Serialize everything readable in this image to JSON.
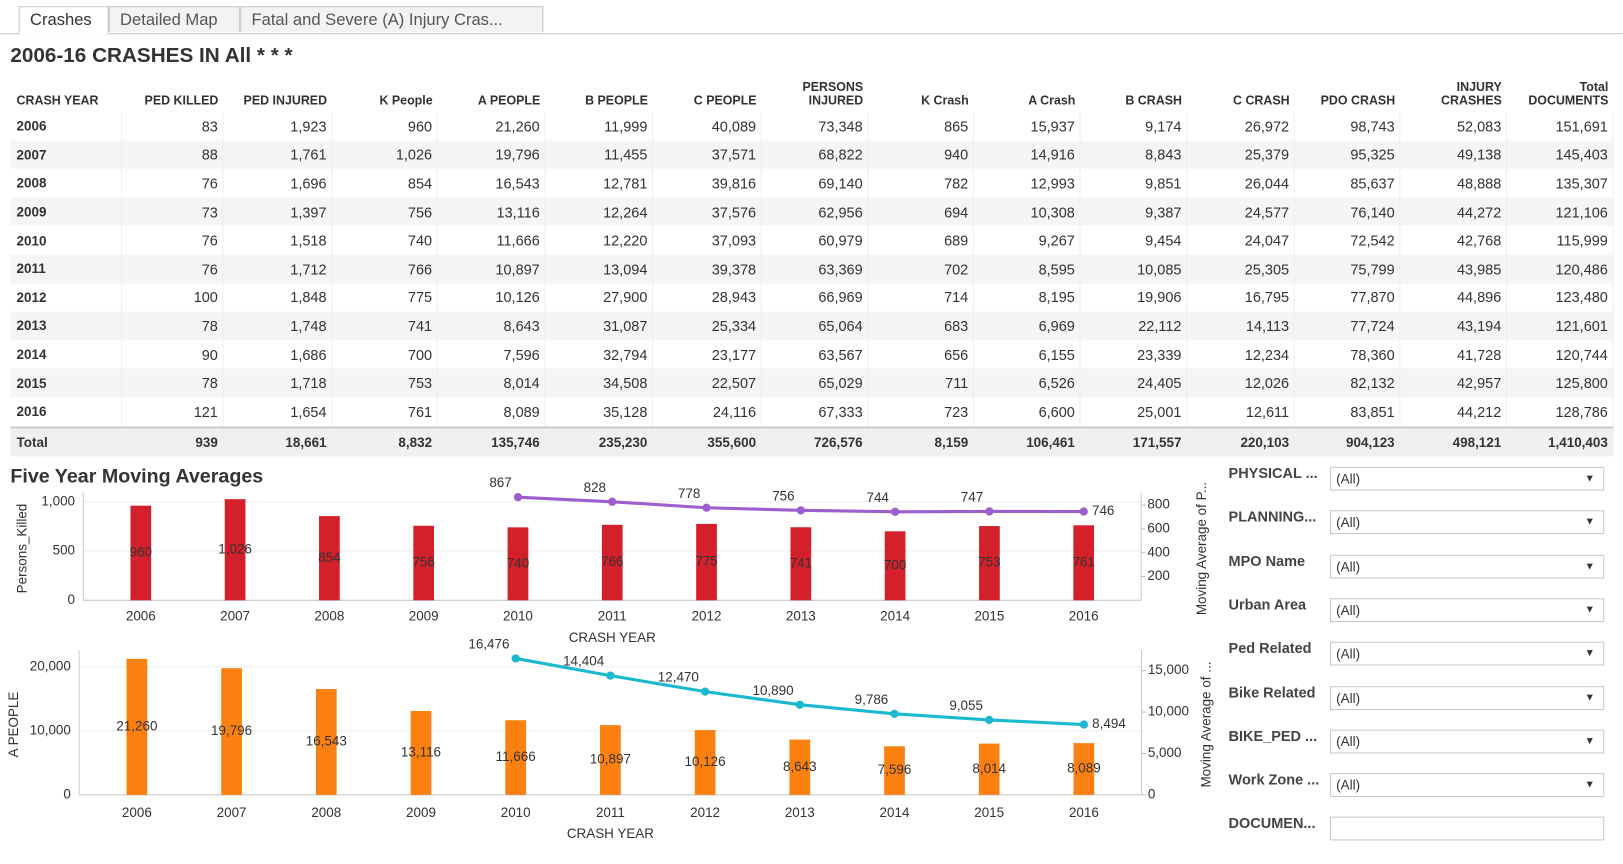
{
  "tabs": [
    "Crashes",
    "Detailed Map",
    "Fatal and Severe (A) Injury Cras..."
  ],
  "header": {
    "title": "2006-16 CRASHES IN All * * *"
  },
  "table": {
    "columns": [
      "CRASH YEAR",
      "PED KILLED",
      "PED INJURED",
      "K People",
      "A PEOPLE",
      "B PEOPLE",
      "C PEOPLE",
      "PERSONS INJURED",
      "K Crash",
      "A Crash",
      "B CRASH",
      "C CRASH",
      "PDO CRASH",
      "INJURY CRASHES",
      "Total DOCUMENTS"
    ],
    "rows": [
      [
        "2006",
        "83",
        "1,923",
        "960",
        "21,260",
        "11,999",
        "40,089",
        "73,348",
        "865",
        "15,937",
        "9,174",
        "26,972",
        "98,743",
        "52,083",
        "151,691"
      ],
      [
        "2007",
        "88",
        "1,761",
        "1,026",
        "19,796",
        "11,455",
        "37,571",
        "68,822",
        "940",
        "14,916",
        "8,843",
        "25,379",
        "95,325",
        "49,138",
        "145,403"
      ],
      [
        "2008",
        "76",
        "1,696",
        "854",
        "16,543",
        "12,781",
        "39,816",
        "69,140",
        "782",
        "12,993",
        "9,851",
        "26,044",
        "85,637",
        "48,888",
        "135,307"
      ],
      [
        "2009",
        "73",
        "1,397",
        "756",
        "13,116",
        "12,264",
        "37,576",
        "62,956",
        "694",
        "10,308",
        "9,387",
        "24,577",
        "76,140",
        "44,272",
        "121,106"
      ],
      [
        "2010",
        "76",
        "1,518",
        "740",
        "11,666",
        "12,220",
        "37,093",
        "60,979",
        "689",
        "9,267",
        "9,454",
        "24,047",
        "72,542",
        "42,768",
        "115,999"
      ],
      [
        "2011",
        "76",
        "1,712",
        "766",
        "10,897",
        "13,094",
        "39,378",
        "63,369",
        "702",
        "8,595",
        "10,085",
        "25,305",
        "75,799",
        "43,985",
        "120,486"
      ],
      [
        "2012",
        "100",
        "1,848",
        "775",
        "10,126",
        "27,900",
        "28,943",
        "66,969",
        "714",
        "8,195",
        "19,906",
        "16,795",
        "77,870",
        "44,896",
        "123,480"
      ],
      [
        "2013",
        "78",
        "1,748",
        "741",
        "8,643",
        "31,087",
        "25,334",
        "65,064",
        "683",
        "6,969",
        "22,112",
        "14,113",
        "77,724",
        "43,194",
        "121,601"
      ],
      [
        "2014",
        "90",
        "1,686",
        "700",
        "7,596",
        "32,794",
        "23,177",
        "63,567",
        "656",
        "6,155",
        "23,339",
        "12,234",
        "78,360",
        "41,728",
        "120,744"
      ],
      [
        "2015",
        "78",
        "1,718",
        "753",
        "8,014",
        "34,508",
        "22,507",
        "65,029",
        "711",
        "6,526",
        "24,405",
        "12,026",
        "82,132",
        "42,957",
        "125,800"
      ],
      [
        "2016",
        "121",
        "1,654",
        "761",
        "8,089",
        "35,128",
        "24,116",
        "67,333",
        "723",
        "6,600",
        "25,001",
        "12,611",
        "83,851",
        "44,212",
        "128,786"
      ]
    ],
    "total": [
      "Total",
      "939",
      "18,661",
      "8,832",
      "135,746",
      "235,230",
      "355,600",
      "726,576",
      "8,159",
      "106,461",
      "171,557",
      "220,103",
      "904,123",
      "498,121",
      "1,410,403"
    ]
  },
  "section_title": "Five Year Moving Averages",
  "chart_data": [
    {
      "type": "bar",
      "categories": [
        "2006",
        "2007",
        "2008",
        "2009",
        "2010",
        "2011",
        "2012",
        "2013",
        "2014",
        "2015",
        "2016"
      ],
      "x_label": "CRASH YEAR",
      "y_label": "Persons_Killed",
      "y2_label": "Moving Average of P...",
      "ylim": [
        0,
        1050
      ],
      "yticks": [
        0,
        500,
        {
          "value": 1000,
          "label": "1,000"
        }
      ],
      "y2lim": [
        0,
        870
      ],
      "y2ticks": [
        200,
        400,
        600,
        800
      ],
      "series": [
        {
          "type": "bar",
          "color": "#d3202a",
          "values": [
            960,
            1026,
            854,
            756,
            740,
            766,
            775,
            741,
            700,
            753,
            761
          ],
          "value_labels": [
            "960",
            "1,026",
            "854",
            "756",
            "740",
            "766",
            "775",
            "741",
            "700",
            "753",
            "761"
          ]
        },
        {
          "type": "line",
          "axis": "y2",
          "color": "#9e5fce",
          "values": [
            null,
            null,
            null,
            null,
            867,
            828,
            778,
            756,
            744,
            747,
            746
          ]
        }
      ]
    },
    {
      "type": "bar",
      "categories": [
        "2006",
        "2007",
        "2008",
        "2009",
        "2010",
        "2011",
        "2012",
        "2013",
        "2014",
        "2015",
        "2016"
      ],
      "x_label": "CRASH YEAR",
      "y_label": "A PEOPLE",
      "y2_label": "Moving Average of ...",
      "ylim": [
        0,
        22000
      ],
      "yticks": [
        0,
        {
          "value": 10000,
          "label": "10,000"
        },
        {
          "value": 20000,
          "label": "20,000"
        }
      ],
      "y2lim": [
        0,
        17000
      ],
      "y2ticks": [
        0,
        {
          "value": 5000,
          "label": "5,000"
        },
        {
          "value": 10000,
          "label": "10,000"
        },
        {
          "value": 15000,
          "label": "15,000"
        }
      ],
      "series": [
        {
          "type": "bar",
          "color": "#fb800f",
          "values": [
            21260,
            19796,
            16543,
            13116,
            11666,
            10897,
            10126,
            8643,
            7596,
            8014,
            8089
          ],
          "value_labels": [
            "21,260",
            "19,796",
            "16,543",
            "13,116",
            "11,666",
            "10,897",
            "10,126",
            "8,643",
            "7,596",
            "8,014",
            "8,089"
          ]
        },
        {
          "type": "line",
          "axis": "y2",
          "color": "#1bb9cf",
          "values": [
            null,
            null,
            null,
            null,
            16476,
            14404,
            12470,
            10890,
            9786,
            9055,
            8494
          ],
          "value_labels": [
            null,
            null,
            null,
            null,
            "16,476",
            "14,404",
            "12,470",
            "10,890",
            "9,786",
            "9,055",
            "8,494"
          ]
        }
      ]
    }
  ],
  "filters": [
    {
      "label": "PHYSICAL ...",
      "value": "(All)"
    },
    {
      "label": "PLANNING...",
      "value": "(All)"
    },
    {
      "label": "MPO Name",
      "value": "(All)"
    },
    {
      "label": "Urban Area",
      "value": "(All)"
    },
    {
      "label": "Ped Related",
      "value": "(All)"
    },
    {
      "label": "Bike Related",
      "value": "(All)"
    },
    {
      "label": "BIKE_PED ...",
      "value": "(All)"
    },
    {
      "label": "Work Zone ...",
      "value": "(All)"
    },
    {
      "label": "DOCUMEN..."
    }
  ]
}
